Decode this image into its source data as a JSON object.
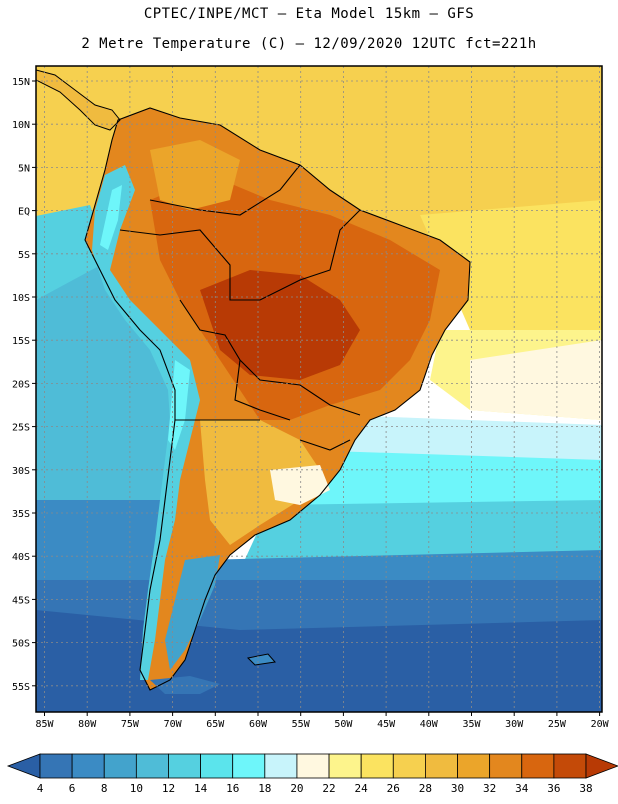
{
  "header": {
    "title_line1": "CPTEC/INPE/MCT –  Eta Model 15km – GFS",
    "title_line2": "2 Metre Temperature (C) – 12/09/2020 12UTC fct=221h"
  },
  "map": {
    "lat_labels": [
      "15N",
      "10N",
      "5N",
      "EQ",
      "5S",
      "10S",
      "15S",
      "20S",
      "25S",
      "30S",
      "35S",
      "40S",
      "45S",
      "50S",
      "55S"
    ],
    "lon_labels": [
      "85W",
      "80W",
      "75W",
      "70W",
      "65W",
      "60W",
      "55W",
      "50W",
      "45W",
      "40W",
      "35W",
      "30W",
      "25W",
      "20W"
    ]
  },
  "colorbar": {
    "labels": [
      "4",
      "6",
      "8",
      "10",
      "12",
      "14",
      "16",
      "18",
      "20",
      "22",
      "24",
      "26",
      "28",
      "30",
      "32",
      "34",
      "36",
      "38"
    ],
    "colors": [
      "#2a5fa5",
      "#3575b5",
      "#3b8bc4",
      "#43a3cc",
      "#4fbcd7",
      "#55d0e0",
      "#5be4ec",
      "#6ef6fa",
      "#c8f4fb",
      "#fff8e0",
      "#fdf48c",
      "#fbe360",
      "#f6d04f",
      "#f0bb3f",
      "#eba52a",
      "#e3871e",
      "#d8660f",
      "#c44a08",
      "#b83a05"
    ]
  },
  "colors": {
    "ocean_deep": "#2a5fa5",
    "ocean_mid": "#43a3cc",
    "ocean_cyan": "#55d0e0",
    "warm_ocean": "#f6d04f",
    "land_hot": "#d8660f",
    "land_hottest": "#b83a05"
  }
}
